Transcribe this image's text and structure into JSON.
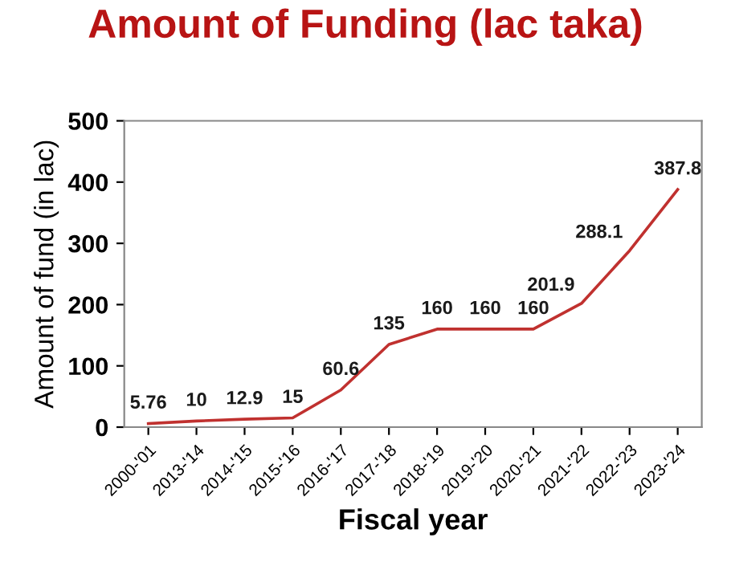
{
  "chart_data": {
    "type": "line",
    "title": "Amount of Funding (lac taka)",
    "xlabel": "Fiscal year",
    "ylabel": "Amount of fund (in lac)",
    "categories": [
      "2000-'01",
      "2013-'14",
      "2014-'15",
      "2015-'16",
      "2016-'17",
      "2017-'18",
      "2018-'19",
      "2019-'20",
      "2020-'21",
      "2021-'22",
      "2022-'23",
      "2023-'24"
    ],
    "series": [
      {
        "color": "#c0312f",
        "values": [
          5.76,
          10,
          12.9,
          15,
          60.6,
          135,
          160,
          160,
          160,
          201.9,
          288.1,
          387.8
        ]
      }
    ],
    "ylim": [
      0,
      500
    ],
    "yticks": [
      0,
      100,
      200,
      300,
      400,
      500
    ],
    "data_labels": true,
    "grid": false,
    "legend": false,
    "marker": "none",
    "line_style": "solid"
  }
}
